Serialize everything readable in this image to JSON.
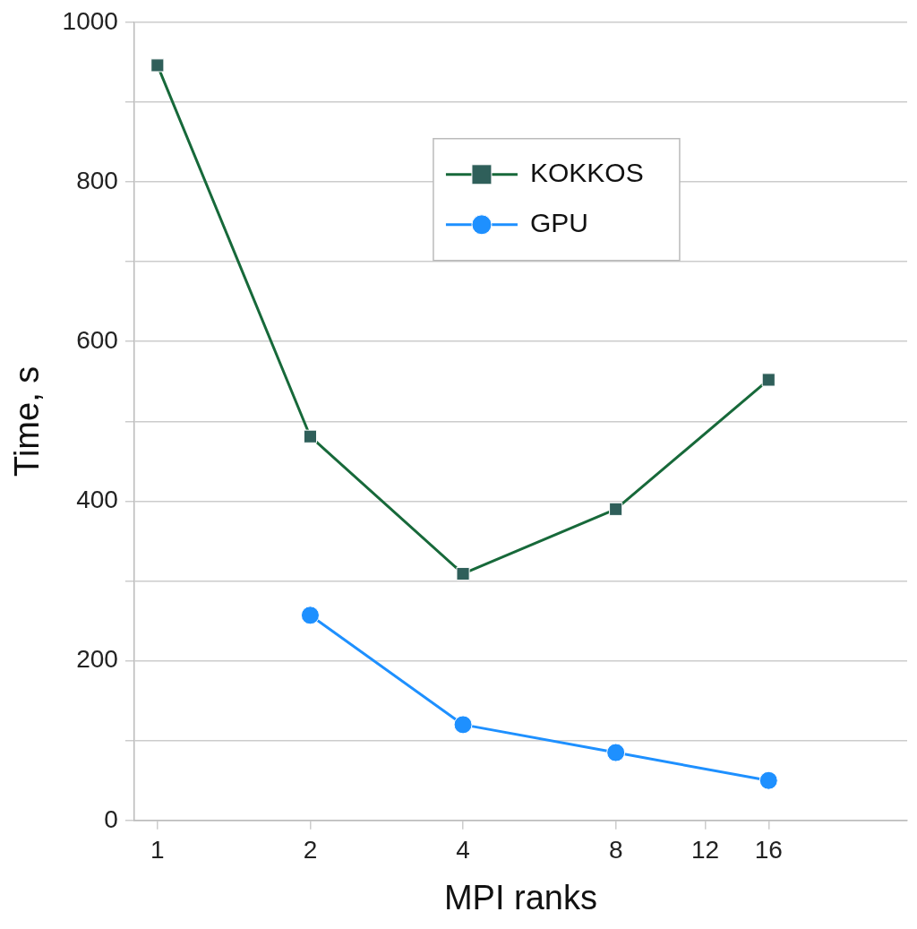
{
  "chart_data": {
    "type": "line",
    "xlabel": "MPI ranks",
    "ylabel": "Time, s",
    "log": "x",
    "grid": "y",
    "legend": "top",
    "xlim": [
      0.9,
      30
    ],
    "xticks": [
      1,
      2,
      4,
      8,
      12,
      16
    ],
    "ylim": [
      0,
      1000
    ],
    "yticks": [
      0,
      {
        "value": 100,
        "label": null
      },
      200,
      {
        "value": 300,
        "label": null
      },
      400,
      {
        "value": 500,
        "label": null
      },
      600,
      {
        "value": 700,
        "label": null
      },
      800,
      {
        "value": 900,
        "label": null
      },
      1000
    ],
    "series": [
      {
        "name": "KOKKOS",
        "color": "#17693a",
        "marker": "square",
        "x": [
          1,
          2,
          4,
          8,
          16
        ],
        "values": [
          946,
          481,
          309,
          390,
          552
        ]
      },
      {
        "name": "GPU",
        "color": "#1e90ff",
        "marker": "circle",
        "x": [
          2,
          4,
          8,
          16
        ],
        "values": [
          257,
          120,
          85,
          50
        ]
      }
    ]
  }
}
